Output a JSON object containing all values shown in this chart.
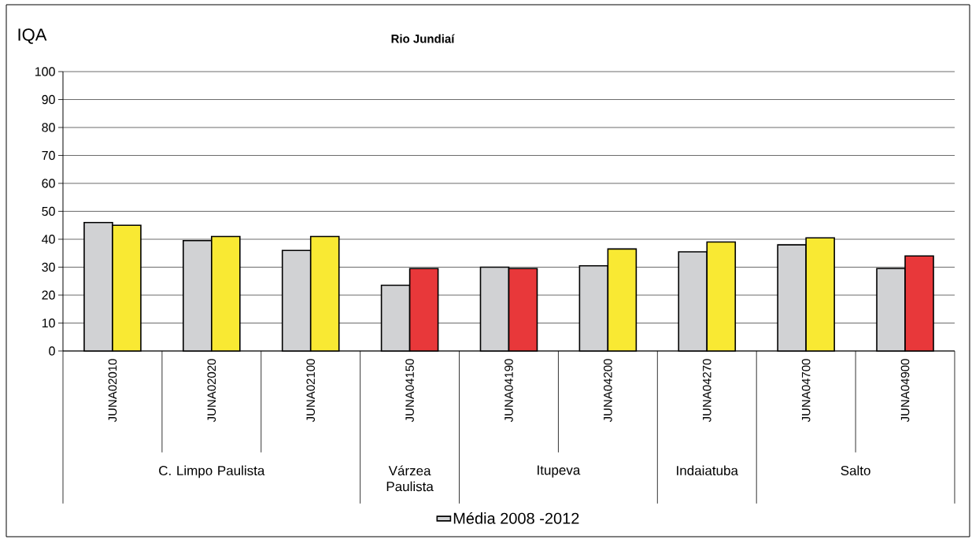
{
  "chart_data": {
    "type": "bar",
    "title": "Rio Jundiaí",
    "ylabel": "IQA",
    "categories": [
      "JUNA02010",
      "JUNA02020",
      "JUNA02100",
      "JUNA04150",
      "JUNA04190",
      "JUNA04200",
      "JUNA04270",
      "JUNA04700",
      "JUNA04900"
    ],
    "series": [
      {
        "name": "Média 2008 -2012",
        "color": "#d1d2d4",
        "values": [
          46,
          39.5,
          36,
          23.5,
          30,
          30.5,
          35.5,
          38,
          29.5
        ]
      },
      {
        "colors": [
          "#f9e933",
          "#f9e933",
          "#f9e933",
          "#e8383a",
          "#e8383a",
          "#f9e933",
          "#f9e933",
          "#f9e933",
          "#e8383a"
        ],
        "values": [
          45,
          41,
          41,
          29.5,
          29.5,
          36.5,
          39,
          40.5,
          34
        ]
      }
    ],
    "ylim": [
      0,
      100
    ],
    "yticks": [
      0,
      10,
      20,
      30,
      40,
      50,
      60,
      70,
      80,
      90,
      100
    ],
    "grid": "y",
    "legend": "bottom",
    "annotations": [
      "C. Limpo Paulista",
      "Várzea Paulista",
      "Itupeva",
      "Indaiatuba",
      "Salto"
    ]
  }
}
